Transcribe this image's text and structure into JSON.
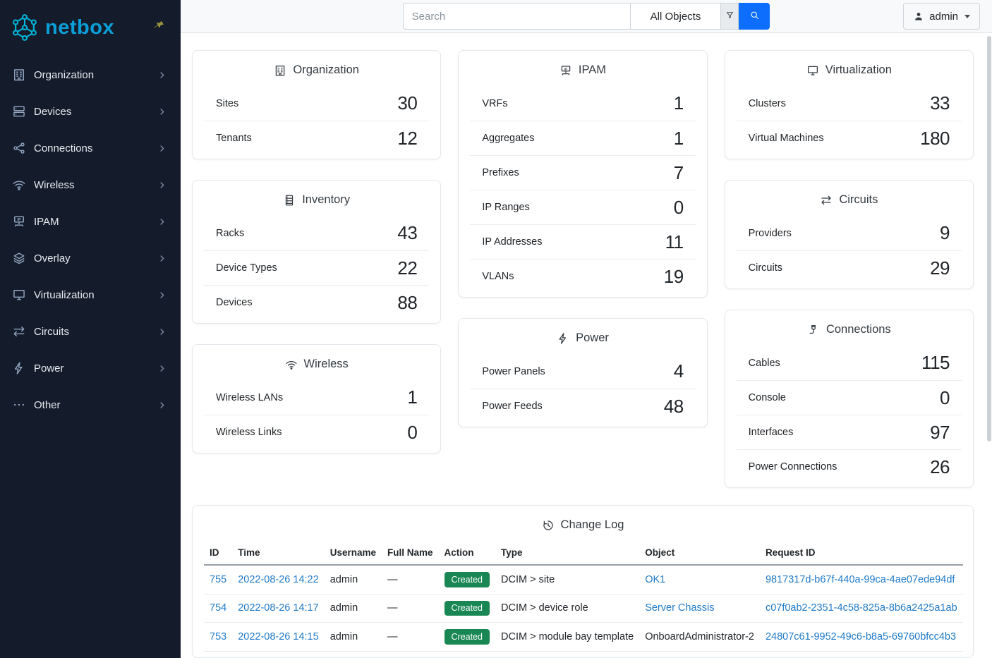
{
  "colors": {
    "accent": "#0d6efd",
    "link": "#1f7ac8",
    "success": "#198754",
    "sidebar_bg": "#141c2c",
    "brand_cyan": "#00b5d8",
    "brand_blue": "#0b9fd8",
    "pin": "#9c913d"
  },
  "brand": {
    "name": "netbox"
  },
  "sidebar": {
    "items": [
      {
        "label": "Organization",
        "icon": "building"
      },
      {
        "label": "Devices",
        "icon": "devices"
      },
      {
        "label": "Connections",
        "icon": "connections"
      },
      {
        "label": "Wireless",
        "icon": "wifi"
      },
      {
        "label": "IPAM",
        "icon": "ipam"
      },
      {
        "label": "Overlay",
        "icon": "overlay"
      },
      {
        "label": "Virtualization",
        "icon": "monitor"
      },
      {
        "label": "Circuits",
        "icon": "circuits"
      },
      {
        "label": "Power",
        "icon": "bolt"
      },
      {
        "label": "Other",
        "icon": "dots"
      }
    ]
  },
  "topbar": {
    "search_placeholder": "Search",
    "scope_label": "All Objects",
    "user_label": "admin"
  },
  "dashboard": {
    "columns": [
      [
        {
          "title": "Organization",
          "icon": "building",
          "stats": [
            [
              "Sites",
              "30"
            ],
            [
              "Tenants",
              "12"
            ]
          ]
        },
        {
          "title": "Inventory",
          "icon": "rack",
          "stats": [
            [
              "Racks",
              "43"
            ],
            [
              "Device Types",
              "22"
            ],
            [
              "Devices",
              "88"
            ]
          ]
        },
        {
          "title": "Wireless",
          "icon": "wifi",
          "stats": [
            [
              "Wireless LANs",
              "1"
            ],
            [
              "Wireless Links",
              "0"
            ]
          ]
        }
      ],
      [
        {
          "title": "IPAM",
          "icon": "ipam",
          "stats": [
            [
              "VRFs",
              "1"
            ],
            [
              "Aggregates",
              "1"
            ],
            [
              "Prefixes",
              "7"
            ],
            [
              "IP Ranges",
              "0"
            ],
            [
              "IP Addresses",
              "11"
            ],
            [
              "VLANs",
              "19"
            ]
          ]
        },
        {
          "title": "Power",
          "icon": "bolt",
          "stats": [
            [
              "Power Panels",
              "4"
            ],
            [
              "Power Feeds",
              "48"
            ]
          ]
        }
      ],
      [
        {
          "title": "Virtualization",
          "icon": "monitor",
          "stats": [
            [
              "Clusters",
              "33"
            ],
            [
              "Virtual Machines",
              "180"
            ]
          ]
        },
        {
          "title": "Circuits",
          "icon": "circuits",
          "stats": [
            [
              "Providers",
              "9"
            ],
            [
              "Circuits",
              "29"
            ]
          ]
        },
        {
          "title": "Connections",
          "icon": "cable",
          "stats": [
            [
              "Cables",
              "115"
            ],
            [
              "Console",
              "0"
            ],
            [
              "Interfaces",
              "97"
            ],
            [
              "Power Connections",
              "26"
            ]
          ]
        }
      ]
    ]
  },
  "changelog": {
    "title": "Change Log",
    "icon": "history",
    "columns": [
      "ID",
      "Time",
      "Username",
      "Full Name",
      "Action",
      "Type",
      "Object",
      "Request ID"
    ],
    "rows": [
      {
        "id": "755",
        "time": "2022-08-26 14:22",
        "username": "admin",
        "full_name": "—",
        "action": "Created",
        "type": "DCIM > site",
        "object": "OK1",
        "object_is_link": true,
        "request_id": "9817317d-b67f-440a-99ca-4ae07ede94df"
      },
      {
        "id": "754",
        "time": "2022-08-26 14:17",
        "username": "admin",
        "full_name": "—",
        "action": "Created",
        "type": "DCIM > device role",
        "object": "Server Chassis",
        "object_is_link": true,
        "request_id": "c07f0ab2-2351-4c58-825a-8b6a2425a1ab"
      },
      {
        "id": "753",
        "time": "2022-08-26 14:15",
        "username": "admin",
        "full_name": "—",
        "action": "Created",
        "type": "DCIM > module bay template",
        "object": "OnboardAdministrator-2",
        "object_is_link": false,
        "request_id": "24807c61-9952-49c6-b8a5-69760bfcc4b3"
      }
    ]
  }
}
